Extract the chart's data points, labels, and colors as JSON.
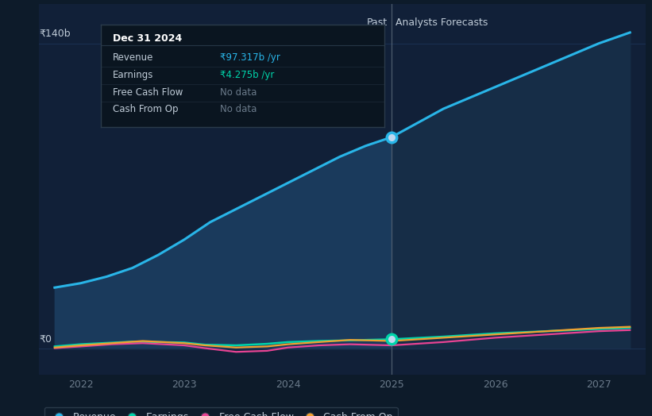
{
  "bg_color": "#0d1b2a",
  "plot_bg_color": "#112038",
  "ylabel_140b": "₹140b",
  "ylabel_0": "₹0",
  "x_ticks": [
    2022,
    2023,
    2024,
    2025,
    2026,
    2027
  ],
  "divider_x": 2025.0,
  "past_label": "Past",
  "forecast_label": "Analysts Forecasts",
  "revenue_past_x": [
    2021.75,
    2022.0,
    2022.25,
    2022.5,
    2022.75,
    2023.0,
    2023.25,
    2023.5,
    2023.75,
    2024.0,
    2024.25,
    2024.5,
    2024.75,
    2025.0
  ],
  "revenue_past_y": [
    28,
    30,
    33,
    37,
    43,
    50,
    58,
    64,
    70,
    76,
    82,
    88,
    93,
    97
  ],
  "revenue_future_x": [
    2025.0,
    2025.5,
    2026.0,
    2026.5,
    2027.0,
    2027.3
  ],
  "revenue_future_y": [
    97,
    110,
    120,
    130,
    140,
    145
  ],
  "earnings_past_x": [
    2021.75,
    2022.0,
    2022.5,
    2023.0,
    2023.2,
    2023.5,
    2023.8,
    2024.0,
    2024.3,
    2024.6,
    2025.0
  ],
  "earnings_past_y": [
    1.0,
    2.0,
    3.2,
    2.8,
    1.8,
    1.5,
    2.2,
    3.0,
    3.5,
    3.8,
    4.275
  ],
  "earnings_future_x": [
    2025.0,
    2025.5,
    2026.0,
    2026.5,
    2027.0,
    2027.3
  ],
  "earnings_future_y": [
    4.275,
    5.5,
    7.0,
    8.0,
    9.0,
    9.5
  ],
  "fcf_past_x": [
    2021.75,
    2022.0,
    2022.3,
    2022.6,
    2023.0,
    2023.2,
    2023.5,
    2023.8,
    2024.0,
    2024.3,
    2024.6,
    2025.0
  ],
  "fcf_past_y": [
    0.2,
    1.0,
    2.0,
    2.5,
    1.5,
    0.2,
    -1.5,
    -1.0,
    0.5,
    1.5,
    2.0,
    1.5
  ],
  "fcf_future_x": [
    2025.0,
    2025.5,
    2026.0,
    2026.5,
    2027.0,
    2027.3
  ],
  "fcf_future_y": [
    1.5,
    3.0,
    5.0,
    6.5,
    8.0,
    8.5
  ],
  "cashop_past_x": [
    2021.75,
    2022.0,
    2022.3,
    2022.6,
    2023.0,
    2023.2,
    2023.5,
    2023.8,
    2024.0,
    2024.3,
    2024.6,
    2025.0
  ],
  "cashop_past_y": [
    0.5,
    1.5,
    2.5,
    3.5,
    2.5,
    1.5,
    0.5,
    1.0,
    2.0,
    3.0,
    4.0,
    3.5
  ],
  "cashop_future_x": [
    2025.0,
    2025.5,
    2026.0,
    2026.5,
    2027.0,
    2027.3
  ],
  "cashop_future_y": [
    3.5,
    5.0,
    6.5,
    8.0,
    9.5,
    10.0
  ],
  "revenue_color": "#29b5e8",
  "earnings_color": "#00d4aa",
  "fcf_color": "#e84393",
  "cashop_color": "#f0a030",
  "fill_color_past": "#1a3a5c",
  "fill_color_future": "#162d47",
  "ylim": [
    -12,
    158
  ],
  "xlim": [
    2021.6,
    2027.45
  ],
  "tooltip_bg": "#0a1520",
  "tooltip_border": "#2a3a4a",
  "divider_color": "#5a6a7a",
  "grid_color": "#1a3050",
  "text_color": "#c0ccd8",
  "axis_label_color": "#6a7a8a",
  "legend_border": "#2a3a4a",
  "marker_dot_color": "#c0d8f0"
}
